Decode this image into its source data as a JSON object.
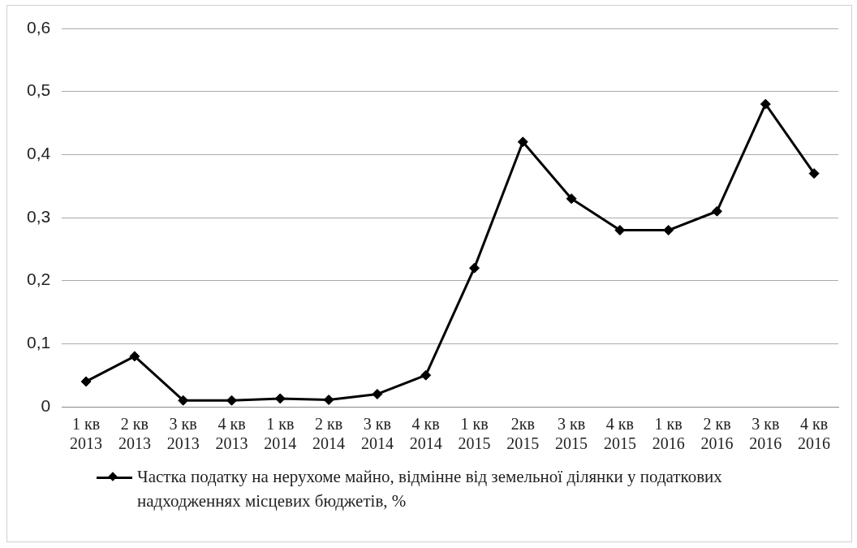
{
  "chart_data": {
    "type": "line",
    "categories": [
      "1 кв 2013",
      "2 кв 2013",
      "3 кв 2013",
      "4 кв 2013",
      "1 кв 2014",
      "2 кв 2014",
      "3 кв 2014",
      "4 кв 2014",
      "1 кв 2015",
      "2кв 2015",
      "3 кв 2015",
      "4 кв 2015",
      "1 кв 2016",
      "2 кв 2016",
      "3 кв 2016",
      "4 кв 2016"
    ],
    "series": [
      {
        "name": "Частка податку на нерухоме майно, відмінне від земельної ділянки у податкових надходженнях місцевих бюджетів, %",
        "color": "#000000",
        "values": [
          0.04,
          0.08,
          0.01,
          0.01,
          0.013,
          0.011,
          0.02,
          0.05,
          0.22,
          0.42,
          0.33,
          0.28,
          0.28,
          0.31,
          0.48,
          0.37
        ]
      }
    ],
    "ylim": [
      0,
      0.6
    ],
    "yticks": [
      0,
      {
        "value": 0.1,
        "label": "0,1"
      },
      {
        "value": 0.2,
        "label": "0,2"
      },
      {
        "value": 0.3,
        "label": "0,3"
      },
      {
        "value": 0.4,
        "label": "0,4"
      },
      {
        "value": 0.5,
        "label": "0,5"
      },
      {
        "value": 0.6,
        "label": "0,6"
      }
    ],
    "grid": "y",
    "legend": "bottom",
    "marker": "diamond",
    "line_style": "solid"
  }
}
